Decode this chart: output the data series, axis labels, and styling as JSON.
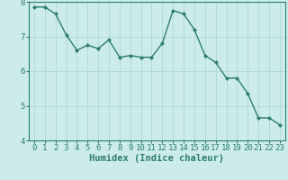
{
  "x": [
    0,
    1,
    2,
    3,
    4,
    5,
    6,
    7,
    8,
    9,
    10,
    11,
    12,
    13,
    14,
    15,
    16,
    17,
    18,
    19,
    20,
    21,
    22,
    23
  ],
  "y": [
    7.85,
    7.85,
    7.65,
    7.05,
    6.6,
    6.75,
    6.65,
    6.9,
    6.4,
    6.45,
    6.4,
    6.4,
    6.8,
    7.75,
    7.65,
    7.2,
    6.45,
    6.25,
    5.8,
    5.8,
    5.35,
    4.65,
    4.65,
    4.45
  ],
  "line_color": "#2e7d6e",
  "marker": "D",
  "marker_size": 2.2,
  "background_color": "#ccecea",
  "grid_color": "#aed8d4",
  "axis_color": "#2e7d6e",
  "xlabel": "Humidex (Indice chaleur)",
  "xlabel_fontsize": 7.5,
  "ylim": [
    4,
    8
  ],
  "xlim": [
    -0.5,
    23.5
  ],
  "yticks": [
    4,
    5,
    6,
    7,
    8
  ],
  "xticks": [
    0,
    1,
    2,
    3,
    4,
    5,
    6,
    7,
    8,
    9,
    10,
    11,
    12,
    13,
    14,
    15,
    16,
    17,
    18,
    19,
    20,
    21,
    22,
    23
  ],
  "tick_fontsize": 6.5,
  "line_width": 1.0
}
